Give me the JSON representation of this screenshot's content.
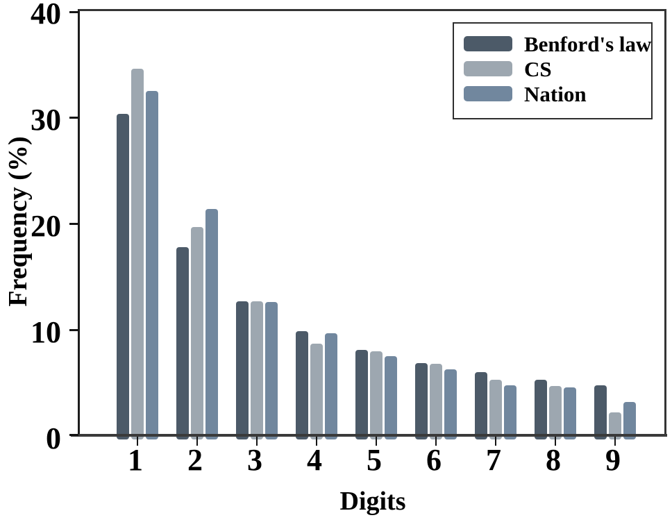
{
  "chart_data": {
    "type": "bar",
    "title": "",
    "xlabel": "Digits",
    "ylabel": "Frequency (%)",
    "categories": [
      "1",
      "2",
      "3",
      "4",
      "5",
      "6",
      "7",
      "8",
      "9"
    ],
    "series": [
      {
        "name": "Benford's law",
        "color": "#4c5a68",
        "values": [
          30.1,
          17.6,
          12.5,
          9.7,
          7.9,
          6.7,
          5.8,
          5.1,
          4.6
        ]
      },
      {
        "name": "CS",
        "color": "#9da7b0",
        "values": [
          34.4,
          19.5,
          12.5,
          8.5,
          7.8,
          6.6,
          5.1,
          4.5,
          2.0
        ]
      },
      {
        "name": "Nation",
        "color": "#71879e",
        "values": [
          32.3,
          21.2,
          12.4,
          9.5,
          7.3,
          6.1,
          4.6,
          4.4,
          3.0
        ]
      }
    ],
    "ylim": [
      0,
      40
    ],
    "yticks": [
      0,
      10,
      20,
      30,
      40
    ],
    "legend_position": "top-right",
    "grid": false,
    "frame_color": "#343434",
    "background_color": "#ffffff",
    "text_color": "#000000"
  }
}
